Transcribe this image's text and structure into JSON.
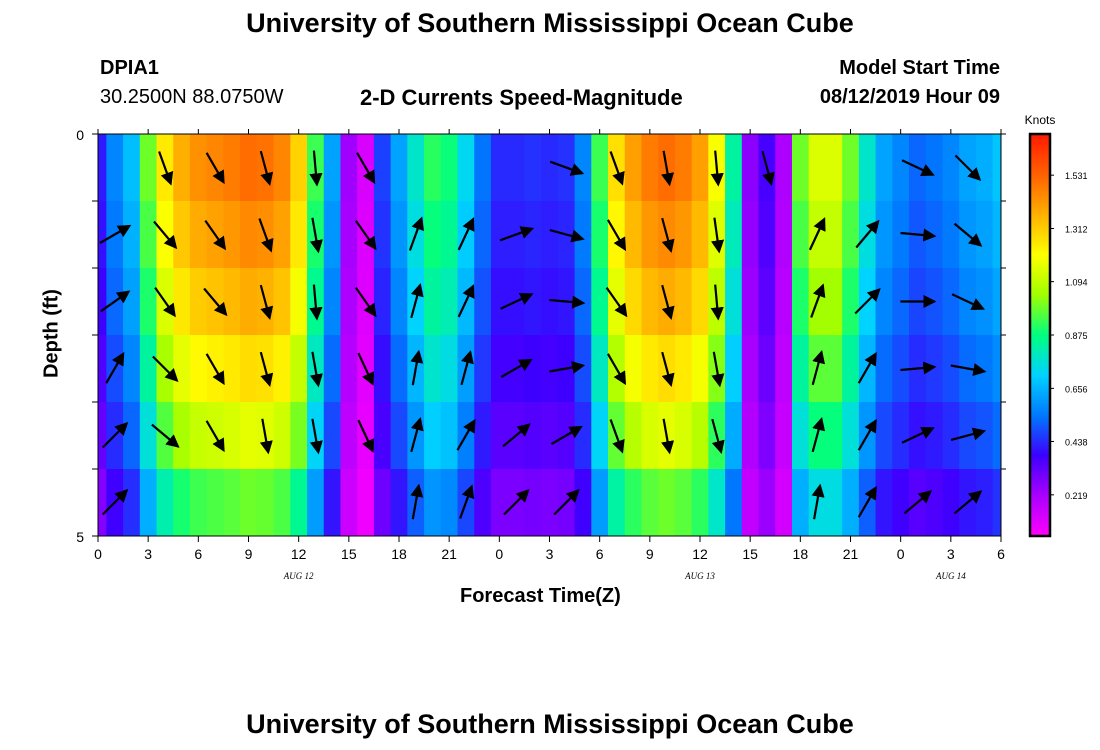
{
  "header": {
    "title": "University of Southern Mississippi Ocean Cube",
    "footer_title": "University of Southern Mississippi Ocean Cube",
    "station_id": "DPIA1",
    "location": "30.2500N 88.0750W",
    "chart_title": "2-D Currents Speed-Magnitude",
    "model_start_label": "Model Start Time",
    "model_start_value": "08/12/2019 Hour 09"
  },
  "chart_data": {
    "type": "heatmap",
    "title": "2-D Currents Speed-Magnitude",
    "xlabel": "Forecast Time(Z)",
    "ylabel": "Depth (ft)",
    "x_tick_labels": [
      "0",
      "3",
      "6",
      "9",
      "12",
      "15",
      "18",
      "21",
      "0",
      "3",
      "6",
      "9",
      "12",
      "15",
      "18",
      "21",
      "0",
      "3",
      "6"
    ],
    "x_hours": [
      0,
      3,
      6,
      9,
      12,
      15,
      18,
      21,
      24,
      27,
      30,
      33,
      36,
      39,
      42,
      45,
      48,
      51,
      54
    ],
    "date_labels": [
      {
        "text": "AUG 12",
        "hour": 12
      },
      {
        "text": "AUG 13",
        "hour": 36
      },
      {
        "text": "AUG 14",
        "hour": 51
      }
    ],
    "y_tick_labels": [
      "0",
      "5"
    ],
    "ylim": [
      5,
      0
    ],
    "depths_ft": [
      0,
      1,
      2,
      3,
      4,
      5
    ],
    "colorbar": {
      "title": "Knots",
      "tick_labels": [
        "1.531",
        "1.312",
        "1.094",
        "0.875",
        "0.656",
        "0.438",
        "0.219"
      ],
      "range": [
        0.05,
        1.7
      ]
    },
    "speed_profile_knots": {
      "hours": [
        0,
        1,
        2,
        3,
        4,
        5,
        6,
        7,
        8,
        9,
        10,
        11,
        12,
        13,
        14,
        15,
        16,
        17,
        18,
        19,
        20,
        21,
        22,
        23,
        24,
        25,
        26,
        27,
        28,
        29,
        30,
        31,
        32,
        33,
        34,
        35,
        36,
        37,
        38,
        39,
        40,
        41,
        42,
        43,
        44,
        45,
        46,
        47,
        48,
        49,
        50,
        51,
        52,
        53,
        54
      ],
      "values": [
        0.4,
        0.55,
        0.65,
        0.95,
        1.2,
        1.32,
        1.38,
        1.4,
        1.42,
        1.45,
        1.44,
        1.4,
        1.25,
        0.9,
        0.6,
        0.22,
        0.12,
        0.45,
        0.6,
        0.75,
        0.88,
        0.85,
        0.7,
        0.52,
        0.42,
        0.42,
        0.43,
        0.42,
        0.43,
        0.55,
        0.9,
        1.22,
        1.35,
        1.42,
        1.45,
        1.42,
        1.35,
        1.15,
        0.8,
        0.25,
        0.35,
        0.2,
        0.95,
        1.1,
        1.1,
        0.95,
        0.75,
        0.6,
        0.55,
        0.5,
        0.52,
        0.55,
        0.6,
        0.62,
        0.66
      ]
    },
    "depth_factors": [
      1.04,
      1.0,
      0.95,
      0.88,
      0.8,
      0.68
    ],
    "vector_hours": [
      1,
      4,
      7,
      10,
      13,
      16,
      19,
      22,
      25,
      28,
      31,
      34,
      37,
      40,
      43,
      46,
      49,
      52
    ],
    "vector_directions_deg": [
      [
        null,
        160,
        150,
        165,
        175,
        150,
        null,
        null,
        null,
        110,
        160,
        170,
        175,
        165,
        null,
        null,
        115,
        135
      ],
      [
        60,
        140,
        145,
        160,
        170,
        145,
        20,
        25,
        70,
        105,
        150,
        165,
        172,
        null,
        25,
        40,
        95,
        130
      ],
      [
        55,
        145,
        140,
        165,
        175,
        145,
        15,
        25,
        65,
        95,
        145,
        165,
        175,
        null,
        20,
        45,
        90,
        115
      ],
      [
        30,
        135,
        150,
        165,
        170,
        155,
        10,
        15,
        60,
        80,
        150,
        165,
        170,
        null,
        15,
        30,
        85,
        100
      ],
      [
        45,
        130,
        150,
        170,
        170,
        155,
        15,
        30,
        50,
        60,
        160,
        170,
        165,
        null,
        15,
        30,
        65,
        75
      ],
      [
        45,
        null,
        null,
        null,
        null,
        null,
        10,
        20,
        45,
        45,
        null,
        null,
        null,
        null,
        10,
        30,
        50,
        50
      ]
    ]
  },
  "legend_meta": {
    "colors": [
      "#ff00ff",
      "#aa00ff",
      "#3c00ff",
      "#0078ff",
      "#00d2ff",
      "#00ff80",
      "#a0ff00",
      "#ffff00",
      "#ffb000",
      "#ff6000",
      "#ff1a00"
    ]
  }
}
